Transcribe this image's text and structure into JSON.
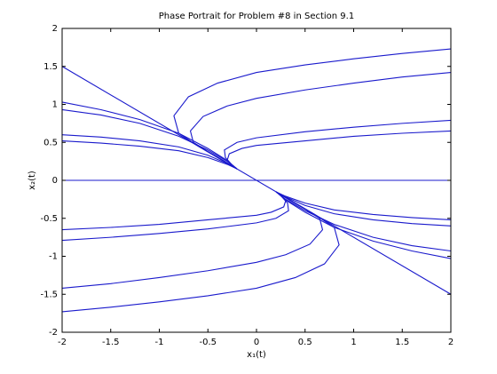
{
  "chart_data": {
    "type": "line",
    "title": "Phase Portrait for Problem #8 in Section 9.1",
    "xlabel": "x₁(t)",
    "ylabel": "x₂(t)",
    "xlim": [
      -2,
      2
    ],
    "ylim": [
      -2,
      2
    ],
    "xticks": [
      -2,
      -1.5,
      -1,
      -0.5,
      0,
      0.5,
      1,
      1.5,
      2
    ],
    "yticks": [
      -2,
      -1.5,
      -1,
      -0.5,
      0,
      0.5,
      1,
      1.5,
      2
    ],
    "grid": false,
    "series": [
      {
        "color": "#1a1acc",
        "x": [
          -2,
          2
        ],
        "values": [
          1.5,
          -1.5
        ]
      },
      {
        "color": "#1a1acc",
        "x": [
          -2,
          2
        ],
        "values": [
          0,
          0
        ]
      },
      {
        "color": "#1a1acc",
        "x": [
          -2,
          -1.6,
          -1.2,
          -0.8,
          -0.5,
          -0.3,
          -0.2
        ],
        "values": [
          1.03,
          0.93,
          0.8,
          0.62,
          0.42,
          0.26,
          0.15
        ]
      },
      {
        "color": "#1a1acc",
        "x": [
          -2,
          -1.6,
          -1.2,
          -0.8,
          -0.5,
          -0.3,
          -0.2
        ],
        "values": [
          0.93,
          0.86,
          0.75,
          0.58,
          0.4,
          0.25,
          0.15
        ]
      },
      {
        "color": "#1a1acc",
        "x": [
          -2,
          -1.6,
          -1.2,
          -0.8,
          -0.5,
          -0.3,
          -0.2
        ],
        "values": [
          0.6,
          0.57,
          0.52,
          0.44,
          0.33,
          0.22,
          0.15
        ]
      },
      {
        "color": "#1a1acc",
        "x": [
          -2,
          -1.6,
          -1.2,
          -0.8,
          -0.5,
          -0.3,
          -0.2
        ],
        "values": [
          0.52,
          0.49,
          0.45,
          0.39,
          0.3,
          0.21,
          0.15
        ]
      },
      {
        "color": "#1a1acc",
        "x": [
          2,
          1.5,
          1,
          0.5,
          0,
          -0.4,
          -0.7,
          -0.85,
          -0.8,
          -0.6,
          -0.4,
          -0.2
        ],
        "values": [
          1.73,
          1.67,
          1.6,
          1.52,
          1.42,
          1.28,
          1.1,
          0.85,
          0.62,
          0.45,
          0.3,
          0.15
        ]
      },
      {
        "color": "#1a1acc",
        "x": [
          2,
          1.5,
          1,
          0.5,
          0,
          -0.3,
          -0.55,
          -0.68,
          -0.65,
          -0.5,
          -0.35,
          -0.2
        ],
        "values": [
          1.42,
          1.36,
          1.28,
          1.19,
          1.08,
          0.98,
          0.84,
          0.65,
          0.5,
          0.38,
          0.27,
          0.15
        ]
      },
      {
        "color": "#1a1acc",
        "x": [
          2,
          1.5,
          1,
          0.5,
          0,
          -0.2,
          -0.33,
          -0.32,
          -0.25,
          -0.2
        ],
        "values": [
          0.79,
          0.75,
          0.7,
          0.64,
          0.56,
          0.5,
          0.4,
          0.3,
          0.2,
          0.15
        ]
      },
      {
        "color": "#1a1acc",
        "x": [
          2,
          1.5,
          1,
          0.5,
          0,
          -0.15,
          -0.28,
          -0.3,
          -0.25,
          -0.2
        ],
        "values": [
          0.65,
          0.62,
          0.58,
          0.52,
          0.46,
          0.42,
          0.35,
          0.27,
          0.2,
          0.15
        ]
      },
      {
        "color": "#1a1acc",
        "x": [
          2,
          1.6,
          1.2,
          0.8,
          0.5,
          0.3,
          0.2
        ],
        "values": [
          -1.03,
          -0.93,
          -0.8,
          -0.62,
          -0.42,
          -0.26,
          -0.15
        ]
      },
      {
        "color": "#1a1acc",
        "x": [
          2,
          1.6,
          1.2,
          0.8,
          0.5,
          0.3,
          0.2
        ],
        "values": [
          -0.93,
          -0.86,
          -0.75,
          -0.58,
          -0.4,
          -0.25,
          -0.15
        ]
      },
      {
        "color": "#1a1acc",
        "x": [
          2,
          1.6,
          1.2,
          0.8,
          0.5,
          0.3,
          0.2
        ],
        "values": [
          -0.6,
          -0.57,
          -0.52,
          -0.44,
          -0.33,
          -0.22,
          -0.15
        ]
      },
      {
        "color": "#1a1acc",
        "x": [
          2,
          1.6,
          1.2,
          0.8,
          0.5,
          0.3,
          0.2
        ],
        "values": [
          -0.52,
          -0.49,
          -0.45,
          -0.39,
          -0.3,
          -0.21,
          -0.15
        ]
      },
      {
        "color": "#1a1acc",
        "x": [
          -2,
          -1.5,
          -1,
          -0.5,
          0,
          0.4,
          0.7,
          0.85,
          0.8,
          0.6,
          0.4,
          0.2
        ],
        "values": [
          -1.73,
          -1.67,
          -1.6,
          -1.52,
          -1.42,
          -1.28,
          -1.1,
          -0.85,
          -0.62,
          -0.45,
          -0.3,
          -0.15
        ]
      },
      {
        "color": "#1a1acc",
        "x": [
          -2,
          -1.5,
          -1,
          -0.5,
          0,
          0.3,
          0.55,
          0.68,
          0.65,
          0.5,
          0.35,
          0.2
        ],
        "values": [
          -1.42,
          -1.36,
          -1.28,
          -1.19,
          -1.08,
          -0.98,
          -0.84,
          -0.65,
          -0.5,
          -0.38,
          -0.27,
          -0.15
        ]
      },
      {
        "color": "#1a1acc",
        "x": [
          -2,
          -1.5,
          -1,
          -0.5,
          0,
          0.2,
          0.33,
          0.32,
          0.25,
          0.2
        ],
        "values": [
          -0.79,
          -0.75,
          -0.7,
          -0.64,
          -0.56,
          -0.5,
          -0.4,
          -0.3,
          -0.2,
          -0.15
        ]
      },
      {
        "color": "#1a1acc",
        "x": [
          -2,
          -1.5,
          -1,
          -0.5,
          0,
          0.15,
          0.28,
          0.3,
          0.25,
          0.2
        ],
        "values": [
          -0.65,
          -0.62,
          -0.58,
          -0.52,
          -0.46,
          -0.42,
          -0.35,
          -0.27,
          -0.2,
          -0.15
        ]
      }
    ]
  }
}
